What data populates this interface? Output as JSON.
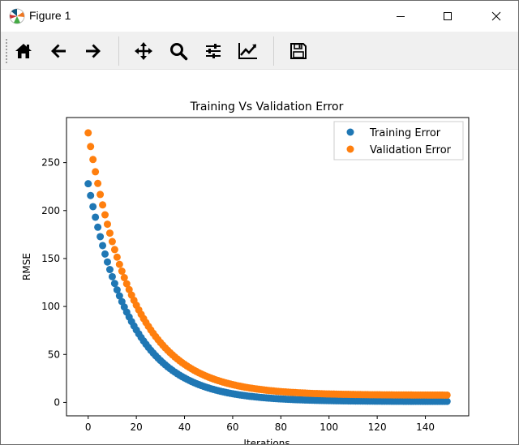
{
  "window": {
    "title": "Figure 1",
    "buttons": {
      "minimize": "minimize",
      "maximize": "maximize",
      "close": "close"
    }
  },
  "toolbar": {
    "tools": [
      {
        "name": "home",
        "icon": "home-icon"
      },
      {
        "name": "back",
        "icon": "arrow-left-icon"
      },
      {
        "name": "forward",
        "icon": "arrow-right-icon"
      },
      {
        "name": "pan",
        "icon": "move-icon"
      },
      {
        "name": "zoom",
        "icon": "search-icon"
      },
      {
        "name": "subplots",
        "icon": "sliders-icon"
      },
      {
        "name": "edit-axis",
        "icon": "line-chart-icon"
      },
      {
        "name": "save",
        "icon": "floppy-disk-icon"
      }
    ]
  },
  "chart_data": {
    "type": "scatter",
    "title": "Training Vs Validation Error",
    "xlabel": "Iterations",
    "ylabel": "RMSE",
    "xlim": [
      -9,
      158
    ],
    "ylim": [
      -14,
      297
    ],
    "xticks": [
      0,
      20,
      40,
      60,
      80,
      100,
      120,
      140
    ],
    "yticks": [
      0,
      50,
      100,
      150,
      200,
      250
    ],
    "legend_position": "top-right",
    "series": [
      {
        "name": "Training Error",
        "color": "#1f77b4",
        "model": {
          "x_start": 0,
          "x_end": 149,
          "y0": 228,
          "k": 0.0557,
          "floor": 1
        }
      },
      {
        "name": "Validation Error",
        "color": "#ff7f0e",
        "model": {
          "x_start": 0,
          "x_end": 149,
          "y0": 281,
          "k": 0.0535,
          "floor": 7.5
        }
      }
    ]
  }
}
